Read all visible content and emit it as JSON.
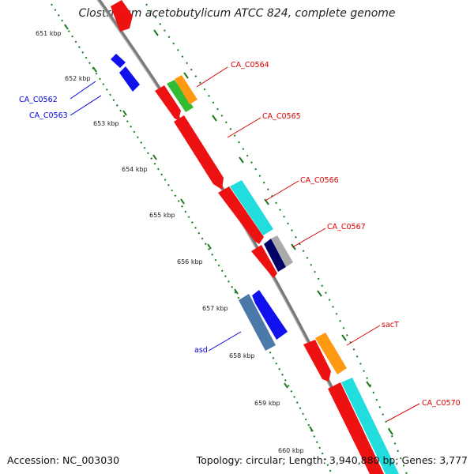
{
  "title": "Clostridium acetobutylicum ATCC 824, complete genome",
  "footer": {
    "accession_label": "Accession: NC_003030",
    "summary": "Topology: circular; Length: 3,940,880 bp; Genes: 3,777"
  },
  "scale_labels": [
    "651 kbp",
    "652 kbp",
    "653 kbp",
    "654 kbp",
    "655 kbp",
    "656 kbp",
    "657 kbp",
    "658 kbp",
    "659 kbp",
    "660 kbp"
  ],
  "gene_labels": [
    {
      "name": "CA_C0562",
      "color": "#0000dd"
    },
    {
      "name": "CA_C0563",
      "color": "#0000dd"
    },
    {
      "name": "CA_C0564",
      "color": "#dd0000"
    },
    {
      "name": "CA_C0565",
      "color": "#dd0000"
    },
    {
      "name": "CA_C0566",
      "color": "#dd0000"
    },
    {
      "name": "CA_C0567",
      "color": "#dd0000"
    },
    {
      "name": "asd",
      "color": "#0000dd"
    },
    {
      "name": "sacT",
      "color": "#dd0000"
    },
    {
      "name": "CA_C0570",
      "color": "#dd0000"
    }
  ],
  "colors": {
    "backbone": "#808080",
    "tick": "#1a7a1a",
    "red": "#ee1111",
    "blue": "#1111ee",
    "green": "#33bb33",
    "orange": "#ff9911",
    "cyan": "#22dddd",
    "navy": "#000066",
    "gray": "#aaaaaa",
    "steel": "#4477aa"
  }
}
